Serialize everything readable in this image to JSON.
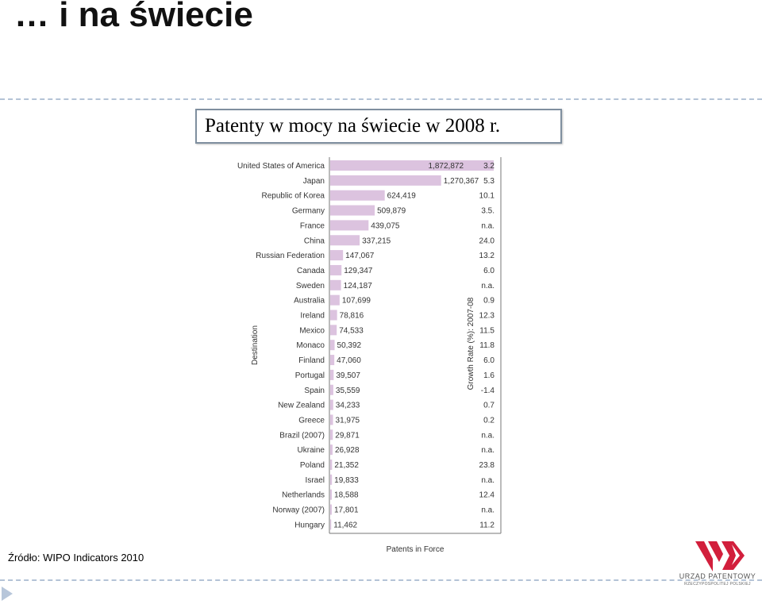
{
  "slide": {
    "title": "… i na świecie",
    "source": "Źródło: WIPO Indicators 2010"
  },
  "chart_title": "Patenty w mocy na świecie w 2008 r.",
  "logo": {
    "name": "URZĄD PATENTOWY",
    "subtitle": "RZECZYPOSPOLITEJ POLSKIEJ",
    "colors": [
      "#d21f3c",
      "#8a8a8a"
    ]
  },
  "colors": {
    "bar": "#dcc3df",
    "dash": "#b4c3d6",
    "nav_arrow": "#b7c6da"
  },
  "chart_data": {
    "type": "bar",
    "orientation": "horizontal",
    "title": "Patenty w mocy na świecie w 2008 r.",
    "xlabel": "Patents in Force",
    "ylabel": "Destination",
    "right_axis_label": "Growth Rate (%): 2007-08",
    "xlim": [
      0,
      2000000
    ],
    "grid": false,
    "categories": [
      "United States of America",
      "Japan",
      "Republic of Korea",
      "Germany",
      "France",
      "China",
      "Russian Federation",
      "Canada",
      "Sweden",
      "Australia",
      "Ireland",
      "Mexico",
      "Monaco",
      "Finland",
      "Portugal",
      "Spain",
      "New Zealand",
      "Greece",
      "Brazil (2007)",
      "Ukraine",
      "Poland",
      "Israel",
      "Netherlands",
      "Norway (2007)",
      "Hungary"
    ],
    "values": [
      1872872,
      1270367,
      624419,
      509879,
      439075,
      337215,
      147067,
      129347,
      124187,
      107699,
      78816,
      74533,
      50392,
      47060,
      39507,
      35559,
      34233,
      31975,
      29871,
      26928,
      21352,
      19833,
      18588,
      17801,
      11462
    ],
    "value_labels": [
      "1,872,872",
      "1,270,367",
      "624,419",
      "509,879",
      "439,075",
      "337,215",
      "147,067",
      "129,347",
      "124,187",
      "107,699",
      "78,816",
      "74,533",
      "50,392",
      "47,060",
      "39,507",
      "35,559",
      "34,233",
      "31,975",
      "29,871",
      "26,928",
      "21,352",
      "19,833",
      "18,588",
      "17,801",
      "11,462"
    ],
    "growth_rates": [
      "3.2",
      "5.3",
      "10.1",
      "3.5.",
      "n.a.",
      "24.0",
      "13.2",
      "6.0",
      "n.a.",
      "0.9",
      "12.3",
      "11.5",
      "11.8",
      "6.0",
      "1.6",
      "-1.4",
      "0.7",
      "0.2",
      "n.a.",
      "n.a.",
      "23.8",
      "n.a.",
      "12.4",
      "n.a.",
      "11.2"
    ]
  }
}
